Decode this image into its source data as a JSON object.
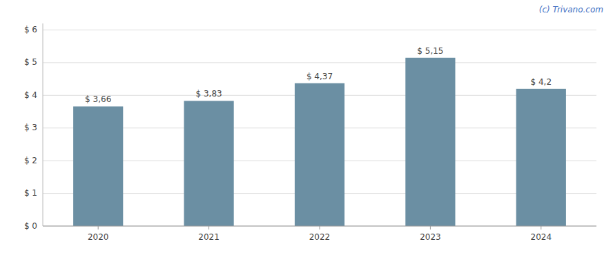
{
  "chart_data": {
    "type": "bar",
    "categories": [
      "2020",
      "2021",
      "2022",
      "2023",
      "2024"
    ],
    "values": [
      3.66,
      3.83,
      4.37,
      5.15,
      4.2
    ],
    "value_labels": [
      "$ 3,66",
      "$ 3,83",
      "$ 4,37",
      "$ 5,15",
      "$ 4,2"
    ],
    "data_labels": true,
    "color": "#6b8fa3",
    "ylim": [
      0,
      6.2
    ],
    "yticks": [
      {
        "value": 0,
        "label": "$ 0"
      },
      {
        "value": 1,
        "label": "$ 1"
      },
      {
        "value": 2,
        "label": "$ 2"
      },
      {
        "value": 3,
        "label": "$ 3"
      },
      {
        "value": 4,
        "label": "$ 4"
      },
      {
        "value": 5,
        "label": "$ 5"
      },
      {
        "value": 6,
        "label": "$ 6"
      }
    ],
    "grid": true,
    "annotations": [
      "(c) Trivano.com"
    ]
  }
}
